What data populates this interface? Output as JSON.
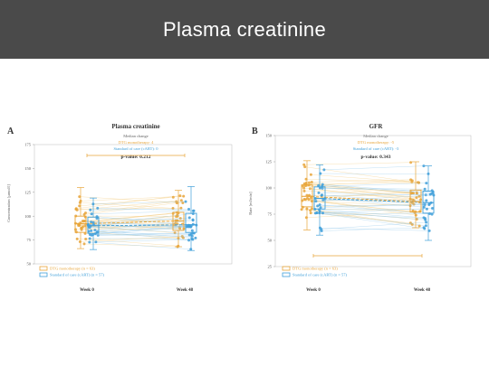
{
  "slide": {
    "title": "Plasma creatinine"
  },
  "colors": {
    "dtg": "#e8a53a",
    "dtg_line": "#f2c87a",
    "soc": "#3f9fd9",
    "soc_line": "#8ec6ea"
  },
  "chart_data": [
    {
      "type": "box-scatter-paired",
      "panel_letter": "A",
      "title": "Plasma creatinine",
      "ylabel": "Concentration [µmol/l]",
      "ylim": [
        50,
        175
      ],
      "yticks": [
        "175",
        "150",
        "125",
        "100",
        "75",
        "50"
      ],
      "ytick_values": [
        175,
        150,
        125,
        100,
        75,
        50
      ],
      "categories": [
        "Week 0",
        "Week 48"
      ],
      "median_change_title": "Median change",
      "median_change_dtg": "DTG monotherapy: 4",
      "median_change_soc": "Standard of care (cART): 0",
      "p_value": "p-value: 0.212",
      "series": [
        {
          "name": "DTG monotherapy (n = 63)",
          "key": "dtg",
          "box_week0": {
            "q1": 83,
            "median": 92,
            "q3": 100,
            "min": 66,
            "max": 130
          },
          "box_week48": {
            "q1": 85,
            "median": 95,
            "q3": 104,
            "min": 68,
            "max": 127
          }
        },
        {
          "name": "Standard of care (cART) (n = 57)",
          "key": "soc",
          "box_week0": {
            "q1": 82,
            "median": 90,
            "q3": 99,
            "min": 65,
            "max": 119
          },
          "box_week48": {
            "q1": 83,
            "median": 91,
            "q3": 103,
            "min": 64,
            "max": 131
          }
        }
      ]
    },
    {
      "type": "box-scatter-paired",
      "panel_letter": "B",
      "title": "GFR",
      "ylabel": "Rate [ml/min]",
      "ylim": [
        25,
        150
      ],
      "yticks": [
        "150",
        "125",
        "100",
        "75",
        "50",
        "25"
      ],
      "ytick_values": [
        150,
        125,
        100,
        75,
        50,
        25
      ],
      "categories": [
        "Week 0",
        "Week 48"
      ],
      "median_change_title": "Median change",
      "median_change_dtg": "DTG monotherapy: -5",
      "median_change_soc": "Standard of care (cART): -3",
      "p_value": "p-value: 0.343",
      "series": [
        {
          "name": "DTG monotherapy (n = 63)",
          "key": "dtg",
          "box_week0": {
            "q1": 82,
            "median": 92,
            "q3": 103,
            "min": 60,
            "max": 126
          },
          "box_week48": {
            "q1": 77,
            "median": 87,
            "q3": 98,
            "min": 62,
            "max": 125
          }
        },
        {
          "name": "Standard of care (cART) (n = 57)",
          "key": "soc",
          "box_week0": {
            "q1": 80,
            "median": 90,
            "q3": 101,
            "min": 55,
            "max": 122
          },
          "box_week48": {
            "q1": 76,
            "median": 86,
            "q3": 97,
            "min": 50,
            "max": 121
          }
        }
      ]
    }
  ]
}
